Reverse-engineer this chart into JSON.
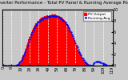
{
  "title": "Solar PV/Inverter Performance - Total PV Panel & Running Average Power Output",
  "bg_color": "#c8c8c8",
  "plot_bg": "#c8c8c8",
  "grid_color": "#ffffff",
  "bar_color": "#ff0000",
  "line_color": "#0000ff",
  "bar_edge_color": "#ff0000",
  "ylim": [
    0,
    10
  ],
  "n_bars": 120,
  "bar_values": [
    0.0,
    0.0,
    0.0,
    0.0,
    0.0,
    0.0,
    0.0,
    0.0,
    0.0,
    0.0,
    0.0,
    0.0,
    0.0,
    0.0,
    0.05,
    0.1,
    0.2,
    0.4,
    0.65,
    0.9,
    1.2,
    1.55,
    1.9,
    2.3,
    2.75,
    3.2,
    3.7,
    4.2,
    4.7,
    5.2,
    5.65,
    6.05,
    6.4,
    6.75,
    7.05,
    7.35,
    7.6,
    7.82,
    8.0,
    8.18,
    8.3,
    8.45,
    8.58,
    8.68,
    8.75,
    8.82,
    8.88,
    8.92,
    8.95,
    8.98,
    9.0,
    9.02,
    9.05,
    9.08,
    9.1,
    9.12,
    9.1,
    9.08,
    9.05,
    9.0,
    8.95,
    8.88,
    8.8,
    8.7,
    8.58,
    8.45,
    8.3,
    8.12,
    7.92,
    7.7,
    7.45,
    7.18,
    6.88,
    6.55,
    6.2,
    5.82,
    5.42,
    5.0,
    4.58,
    4.15,
    3.72,
    3.3,
    2.9,
    2.52,
    2.16,
    1.82,
    1.52,
    1.24,
    0.98,
    0.75,
    0.55,
    0.38,
    0.24,
    0.14,
    0.07,
    0.03,
    0.01,
    0.0,
    0.0,
    0.0,
    0.0,
    0.0,
    0.0,
    0.0,
    0.0,
    0.0,
    0.0,
    0.0,
    0.0,
    0.0,
    0.0,
    0.0,
    0.0,
    0.0,
    0.0,
    0.0,
    0.0,
    0.0,
    0.0,
    0.0
  ],
  "avg_values": [
    0.0,
    0.0,
    0.0,
    0.0,
    0.0,
    0.0,
    0.0,
    0.0,
    0.0,
    0.0,
    0.0,
    0.0,
    0.0,
    0.02,
    0.04,
    0.08,
    0.16,
    0.32,
    0.52,
    0.75,
    1.02,
    1.32,
    1.65,
    2.02,
    2.42,
    2.85,
    3.3,
    3.78,
    4.26,
    4.74,
    5.2,
    5.62,
    6.0,
    6.35,
    6.66,
    6.96,
    7.22,
    7.46,
    7.66,
    7.84,
    7.98,
    8.12,
    8.24,
    8.35,
    8.44,
    8.52,
    8.58,
    8.63,
    8.67,
    8.71,
    8.74,
    8.77,
    8.79,
    8.81,
    8.83,
    8.84,
    8.83,
    8.81,
    8.79,
    8.75,
    8.7,
    8.63,
    8.55,
    8.45,
    8.33,
    8.2,
    8.05,
    7.88,
    7.68,
    7.46,
    7.22,
    6.95,
    6.66,
    6.34,
    6.0,
    5.64,
    5.26,
    4.86,
    4.45,
    4.03,
    3.62,
    3.22,
    2.83,
    2.46,
    2.12,
    1.79,
    1.5,
    1.23,
    0.98,
    0.76,
    0.57,
    0.4,
    0.27,
    0.16,
    0.09,
    0.04,
    0.02,
    0.01,
    0.2,
    0.4,
    0.55,
    0.65,
    0.7,
    0.72,
    0.71,
    0.68,
    0.62,
    0.55,
    0.47,
    0.38,
    0.3,
    0.22,
    0.15,
    0.1,
    0.06,
    0.03,
    0.01,
    0.0,
    0.0,
    0.0
  ],
  "yticks": [
    0,
    2,
    4,
    6,
    8,
    10
  ],
  "title_fontsize": 4.0,
  "tick_fontsize": 3.5,
  "legend_fontsize": 3.2
}
